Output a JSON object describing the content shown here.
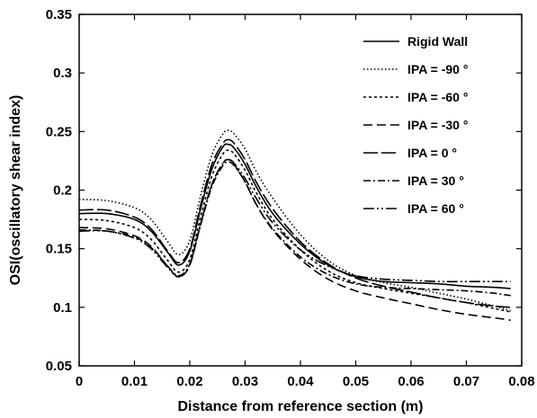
{
  "chart_data": {
    "type": "line",
    "xlabel": "Distance from reference section  (m)",
    "ylabel": "OSI(oscillatory shear index)",
    "xlim": [
      0,
      0.08
    ],
    "ylim": [
      0.05,
      0.35
    ],
    "xticks": [
      "0",
      "0.01",
      "0.02",
      "0.03",
      "0.04",
      "0.05",
      "0.06",
      "0.07",
      "0.08"
    ],
    "yticks": [
      "0.05",
      "0.1",
      "0.15",
      "0.2",
      "0.25",
      "0.3",
      "0.35"
    ],
    "grid": false,
    "legend_position": "top-right",
    "x": [
      0,
      0.005,
      0.01,
      0.013,
      0.016,
      0.018,
      0.02,
      0.022,
      0.024,
      0.026,
      0.027,
      0.028,
      0.03,
      0.032,
      0.035,
      0.04,
      0.045,
      0.05,
      0.055,
      0.06,
      0.065,
      0.07,
      0.075,
      0.078
    ],
    "series": [
      {
        "name": "Rigid Wall",
        "dash": "",
        "values": [
          0.18,
          0.18,
          0.175,
          0.165,
          0.147,
          0.136,
          0.148,
          0.185,
          0.218,
          0.237,
          0.239,
          0.236,
          0.222,
          0.203,
          0.18,
          0.154,
          0.136,
          0.126,
          0.122,
          0.121,
          0.12,
          0.118,
          0.117,
          0.116
        ]
      },
      {
        "name": "IPA = -90  °",
        "dash": "1.5,2.5",
        "values": [
          0.192,
          0.191,
          0.185,
          0.175,
          0.156,
          0.145,
          0.157,
          0.196,
          0.23,
          0.248,
          0.251,
          0.248,
          0.235,
          0.216,
          0.193,
          0.162,
          0.14,
          0.127,
          0.121,
          0.117,
          0.112,
          0.107,
          0.101,
          0.097
        ]
      },
      {
        "name": "IPA = -60  °",
        "dash": "3,3",
        "values": [
          0.175,
          0.174,
          0.168,
          0.158,
          0.14,
          0.13,
          0.141,
          0.178,
          0.212,
          0.231,
          0.234,
          0.231,
          0.217,
          0.198,
          0.175,
          0.149,
          0.131,
          0.121,
          0.116,
          0.112,
          0.108,
          0.104,
          0.099,
          0.096
        ]
      },
      {
        "name": "IPA = -30  °",
        "dash": "10,5",
        "values": [
          0.168,
          0.167,
          0.161,
          0.152,
          0.135,
          0.126,
          0.136,
          0.172,
          0.205,
          0.223,
          0.226,
          0.222,
          0.207,
          0.188,
          0.166,
          0.141,
          0.124,
          0.114,
          0.108,
          0.103,
          0.098,
          0.094,
          0.091,
          0.089
        ]
      },
      {
        "name": "IPA =   0  °",
        "dash": "16,4",
        "values": [
          0.183,
          0.183,
          0.177,
          0.167,
          0.148,
          0.138,
          0.15,
          0.188,
          0.222,
          0.24,
          0.243,
          0.24,
          0.226,
          0.207,
          0.184,
          0.156,
          0.137,
          0.125,
          0.118,
          0.113,
          0.108,
          0.104,
          0.101,
          0.1
        ]
      },
      {
        "name": "IPA =  30  °",
        "dash": "8,3,2,3",
        "values": [
          0.166,
          0.165,
          0.16,
          0.151,
          0.135,
          0.127,
          0.137,
          0.171,
          0.203,
          0.221,
          0.224,
          0.221,
          0.207,
          0.188,
          0.167,
          0.143,
          0.128,
          0.12,
          0.117,
          0.116,
          0.115,
          0.114,
          0.112,
          0.11
        ]
      },
      {
        "name": "IPA =  60  °",
        "dash": "12,3,2,3,2,3",
        "values": [
          0.165,
          0.165,
          0.159,
          0.15,
          0.134,
          0.126,
          0.137,
          0.172,
          0.205,
          0.223,
          0.226,
          0.223,
          0.21,
          0.193,
          0.172,
          0.149,
          0.135,
          0.127,
          0.124,
          0.123,
          0.122,
          0.122,
          0.122,
          0.122
        ]
      }
    ]
  }
}
